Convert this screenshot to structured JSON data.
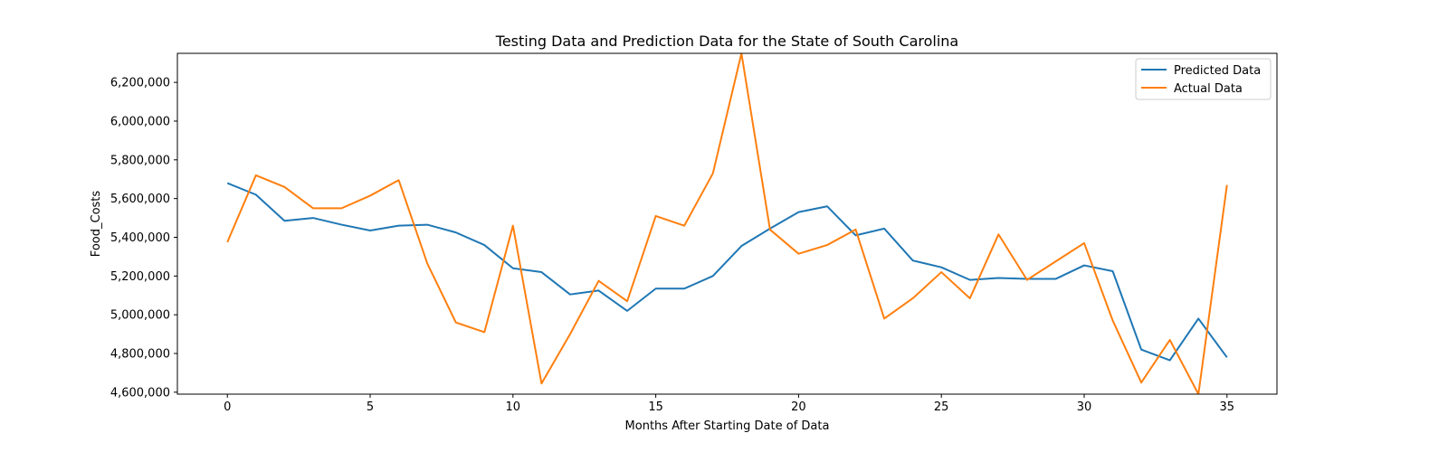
{
  "chart_data": {
    "type": "line",
    "title": "Testing Data and Prediction Data for the State of South Carolina",
    "xlabel": "Months After Starting Date of Data",
    "ylabel": "Food_Costs",
    "xlim": [
      -1.75,
      36.75
    ],
    "ylim": [
      4590000,
      6350000
    ],
    "x_ticks": [
      0,
      5,
      10,
      15,
      20,
      25,
      30,
      35
    ],
    "x_tick_labels": [
      "0",
      "5",
      "10",
      "15",
      "20",
      "25",
      "30",
      "35"
    ],
    "y_ticks": [
      4600000,
      4800000,
      5000000,
      5200000,
      5400000,
      5600000,
      5800000,
      6000000,
      6200000
    ],
    "y_tick_labels": [
      "4,600,000",
      "4,800,000",
      "5,000,000",
      "5,200,000",
      "5,400,000",
      "5,600,000",
      "5,800,000",
      "6,000,000",
      "6,200,000"
    ],
    "grid": false,
    "legend_position": "top-right",
    "x": [
      0,
      1,
      2,
      3,
      4,
      5,
      6,
      7,
      8,
      9,
      10,
      11,
      12,
      13,
      14,
      15,
      16,
      17,
      18,
      19,
      20,
      21,
      22,
      23,
      24,
      25,
      26,
      27,
      28,
      29,
      30,
      31,
      32,
      33,
      34,
      35
    ],
    "series": [
      {
        "name": "Predicted Data",
        "color": "#1f77b4",
        "values": [
          5680000,
          5620000,
          5485000,
          5500000,
          5465000,
          5435000,
          5460000,
          5465000,
          5425000,
          5360000,
          5240000,
          5220000,
          5105000,
          5125000,
          5020000,
          5135000,
          5135000,
          5200000,
          5355000,
          5445000,
          5530000,
          5560000,
          5410000,
          5445000,
          5280000,
          5245000,
          5180000,
          5190000,
          5185000,
          5185000,
          5255000,
          5225000,
          4820000,
          4765000,
          4980000,
          4780000
        ]
      },
      {
        "name": "Actual Data",
        "color": "#ff7f0e",
        "values": [
          5375000,
          5720000,
          5660000,
          5550000,
          5550000,
          5615000,
          5695000,
          5265000,
          4960000,
          4910000,
          5460000,
          4645000,
          4900000,
          5175000,
          5070000,
          5510000,
          5460000,
          5730000,
          6350000,
          5440000,
          5315000,
          5360000,
          5440000,
          4980000,
          5085000,
          5220000,
          5085000,
          5415000,
          5180000,
          5275000,
          5370000,
          4970000,
          4650000,
          4870000,
          4590000,
          5670000
        ]
      }
    ]
  }
}
